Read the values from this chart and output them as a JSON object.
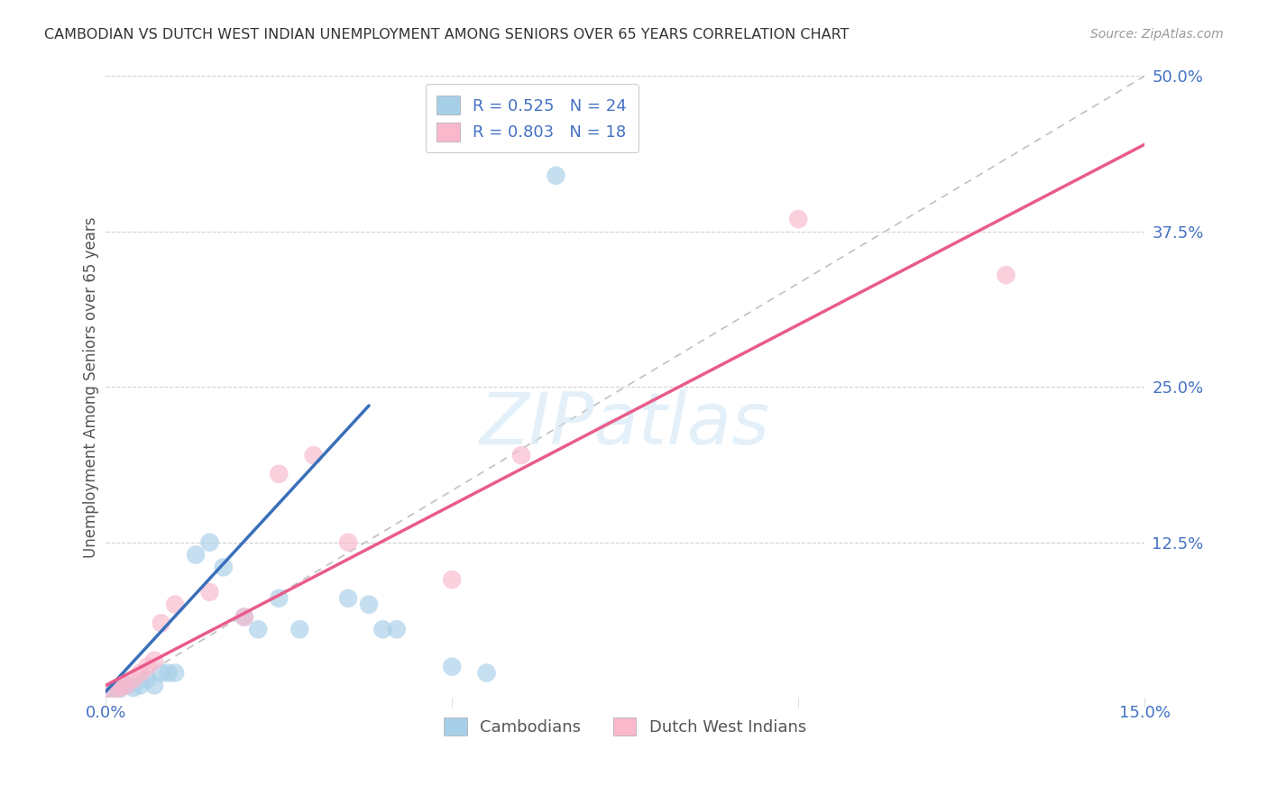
{
  "title": "CAMBODIAN VS DUTCH WEST INDIAN UNEMPLOYMENT AMONG SENIORS OVER 65 YEARS CORRELATION CHART",
  "source": "Source: ZipAtlas.com",
  "ylabel": "Unemployment Among Seniors over 65 years",
  "xlim": [
    0.0,
    0.15
  ],
  "ylim": [
    0.0,
    0.5
  ],
  "yticks": [
    0.0,
    0.125,
    0.25,
    0.375,
    0.5
  ],
  "ytick_labels": [
    "",
    "12.5%",
    "25.0%",
    "37.5%",
    "50.0%"
  ],
  "xticks": [
    0.0,
    0.05,
    0.1,
    0.15
  ],
  "xtick_labels": [
    "0.0%",
    "",
    "",
    "15.0%"
  ],
  "watermark_text": "ZIPatlas",
  "legend_cambodian_r": "R = 0.525",
  "legend_cambodian_n": "N = 24",
  "legend_dutch_r": "R = 0.803",
  "legend_dutch_n": "N = 18",
  "cambodian_color": "#a8cfe8",
  "dutch_color": "#f9b8cc",
  "cambodian_line_color": "#3a6fba",
  "dutch_line_color": "#e85c8a",
  "diagonal_color": "#c0c0c0",
  "cam_line_x": [
    0.0,
    0.038
  ],
  "cam_line_y": [
    0.005,
    0.235
  ],
  "dutch_line_x": [
    0.0,
    0.15
  ],
  "dutch_line_y": [
    0.01,
    0.445
  ],
  "cambodian_x": [
    0.001,
    0.002,
    0.003,
    0.004,
    0.005,
    0.006,
    0.007,
    0.008,
    0.009,
    0.01,
    0.013,
    0.015,
    0.017,
    0.02,
    0.022,
    0.025,
    0.028,
    0.035,
    0.038,
    0.04,
    0.042,
    0.05,
    0.055,
    0.065
  ],
  "cambodian_y": [
    0.005,
    0.007,
    0.01,
    0.008,
    0.01,
    0.015,
    0.01,
    0.02,
    0.02,
    0.02,
    0.115,
    0.125,
    0.105,
    0.065,
    0.055,
    0.08,
    0.055,
    0.08,
    0.075,
    0.055,
    0.055,
    0.025,
    0.02,
    0.42
  ],
  "dutch_x": [
    0.001,
    0.002,
    0.003,
    0.004,
    0.005,
    0.006,
    0.007,
    0.008,
    0.01,
    0.015,
    0.02,
    0.025,
    0.03,
    0.035,
    0.05,
    0.06,
    0.1,
    0.13
  ],
  "dutch_y": [
    0.005,
    0.008,
    0.01,
    0.015,
    0.02,
    0.025,
    0.03,
    0.06,
    0.075,
    0.085,
    0.065,
    0.18,
    0.195,
    0.125,
    0.095,
    0.195,
    0.385,
    0.34
  ]
}
